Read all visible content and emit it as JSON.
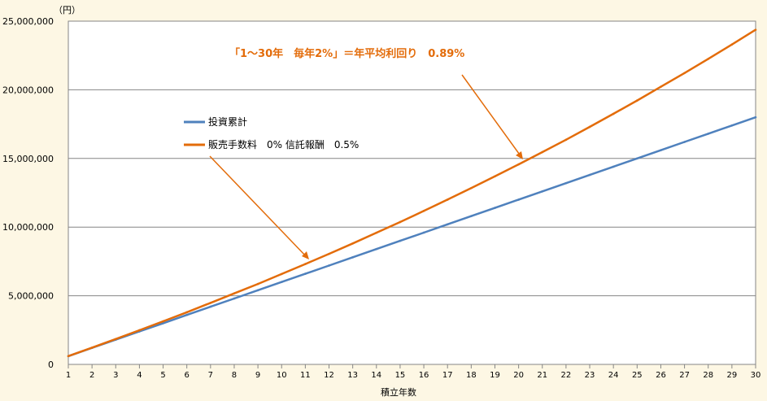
{
  "chart_data": {
    "type": "line",
    "y_unit": "（円）",
    "xlabel": "積立年数",
    "ylabel": "",
    "ylim": [
      0,
      25000000
    ],
    "yticks": [
      0,
      5000000,
      10000000,
      15000000,
      20000000,
      25000000
    ],
    "ytick_labels": [
      "0",
      "5,000,000",
      "10,000,000",
      "15,000,000",
      "20,000,000",
      "25,000,000"
    ],
    "x": [
      1,
      2,
      3,
      4,
      5,
      6,
      7,
      8,
      9,
      10,
      11,
      12,
      13,
      14,
      15,
      16,
      17,
      18,
      19,
      20,
      21,
      22,
      23,
      24,
      25,
      26,
      27,
      28,
      29,
      30
    ],
    "grid": "horizontal",
    "legend_position": "upper-left",
    "series": [
      {
        "name": "投資累計",
        "color": "#4f81bd",
        "values": [
          600000,
          1200000,
          1800000,
          2400000,
          3000000,
          3600000,
          4200000,
          4800000,
          5400000,
          6000000,
          6600000,
          7200000,
          7800000,
          8400000,
          9000000,
          9600000,
          10200000,
          10800000,
          11400000,
          12000000,
          12600000,
          13200000,
          13800000,
          14400000,
          15000000,
          15600000,
          16200000,
          16800000,
          17400000,
          18000000
        ]
      },
      {
        "name": "販売手数料　0% 信託報酬　0.5%",
        "color": "#e36c0a",
        "values": [
          605000,
          1220000,
          1850000,
          2490000,
          3140000,
          3800000,
          4480000,
          5170000,
          5860000,
          6580000,
          7310000,
          8050000,
          8810000,
          9590000,
          10370000,
          11180000,
          12000000,
          12840000,
          13700000,
          14570000,
          15460000,
          16360000,
          17300000,
          18250000,
          19220000,
          20220000,
          21220000,
          22250000,
          23300000,
          24370000
        ]
      }
    ],
    "annotation": {
      "text": "「1～30年　毎年2%」＝年平均利回り　0.89%",
      "color": "#e36c0a"
    }
  }
}
